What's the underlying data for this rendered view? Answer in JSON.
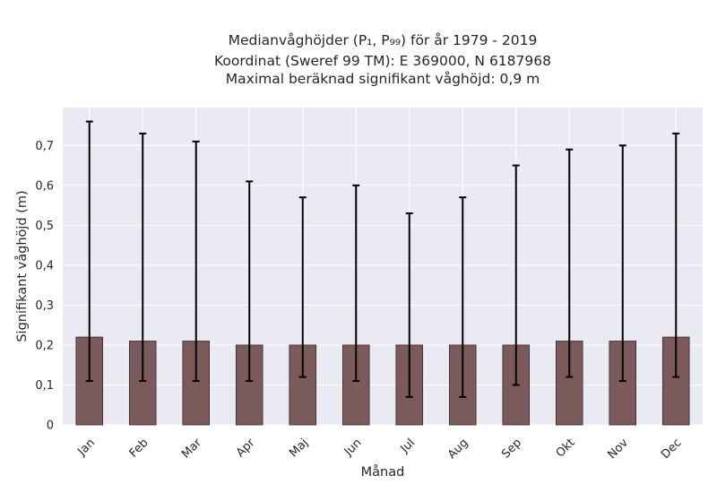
{
  "chart_data": {
    "type": "bar",
    "title_lines": [
      "Medianvåghöjder (P₁, P₉₉) för år 1979 - 2019",
      "Koordinat (Sweref 99 TM): E 369000, N 6187968",
      "Maximal beräknad signifikant våghöjd: 0,9 m"
    ],
    "xlabel": "Månad",
    "ylabel": "Signifikant våghöjd (m)",
    "categories": [
      "Jan",
      "Feb",
      "Mar",
      "Apr",
      "Maj",
      "Jun",
      "Jul",
      "Aug",
      "Sep",
      "Okt",
      "Nov",
      "Dec"
    ],
    "values": [
      0.22,
      0.21,
      0.21,
      0.2,
      0.2,
      0.2,
      0.2,
      0.2,
      0.2,
      0.21,
      0.21,
      0.22
    ],
    "p1": [
      0.11,
      0.11,
      0.11,
      0.11,
      0.12,
      0.11,
      0.07,
      0.07,
      0.1,
      0.12,
      0.11,
      0.12
    ],
    "p99": [
      0.76,
      0.73,
      0.71,
      0.61,
      0.57,
      0.6,
      0.53,
      0.57,
      0.65,
      0.69,
      0.7,
      0.73
    ],
    "ylim": [
      0,
      0.795
    ],
    "yticks": [
      0,
      0.1,
      0.2,
      0.3,
      0.4,
      0.5,
      0.6,
      0.7
    ],
    "ytick_labels": [
      "0",
      "0,1",
      "0,2",
      "0,3",
      "0,4",
      "0,5",
      "0,6",
      "0,7"
    ],
    "grid": true,
    "colors": {
      "bar": "#7a5a5a",
      "bar_edge": "#3a2a2a",
      "errorbar": "#000000",
      "background": "#eaeaf2",
      "grid": "#ffffff"
    }
  }
}
